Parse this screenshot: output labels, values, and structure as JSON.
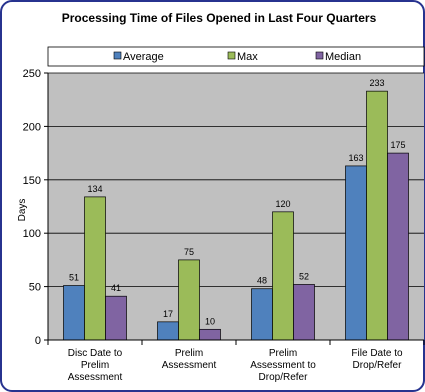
{
  "chart_data": {
    "type": "bar",
    "title": "Processing Time of Files Opened in Last Four Quarters",
    "ylabel": "Days",
    "xlabel": "",
    "ylim": [
      0,
      250
    ],
    "yticks": [
      0,
      50,
      100,
      150,
      200,
      250
    ],
    "legend_position": "top",
    "grid": true,
    "categories": [
      [
        "Disc Date to",
        "Prelim",
        "Assessment"
      ],
      [
        "Prelim",
        "Assessment"
      ],
      [
        "Prelim",
        "Assessment to",
        "Drop/Refer"
      ],
      [
        "File Date to",
        "Drop/Refer"
      ]
    ],
    "series": [
      {
        "name": "Average",
        "color": "#4f81bd",
        "values": [
          51,
          17,
          48,
          163
        ]
      },
      {
        "name": "Max",
        "color": "#9bbb59",
        "values": [
          134,
          75,
          120,
          233
        ]
      },
      {
        "name": "Median",
        "color": "#8064a2",
        "values": [
          41,
          10,
          52,
          175
        ]
      }
    ]
  }
}
